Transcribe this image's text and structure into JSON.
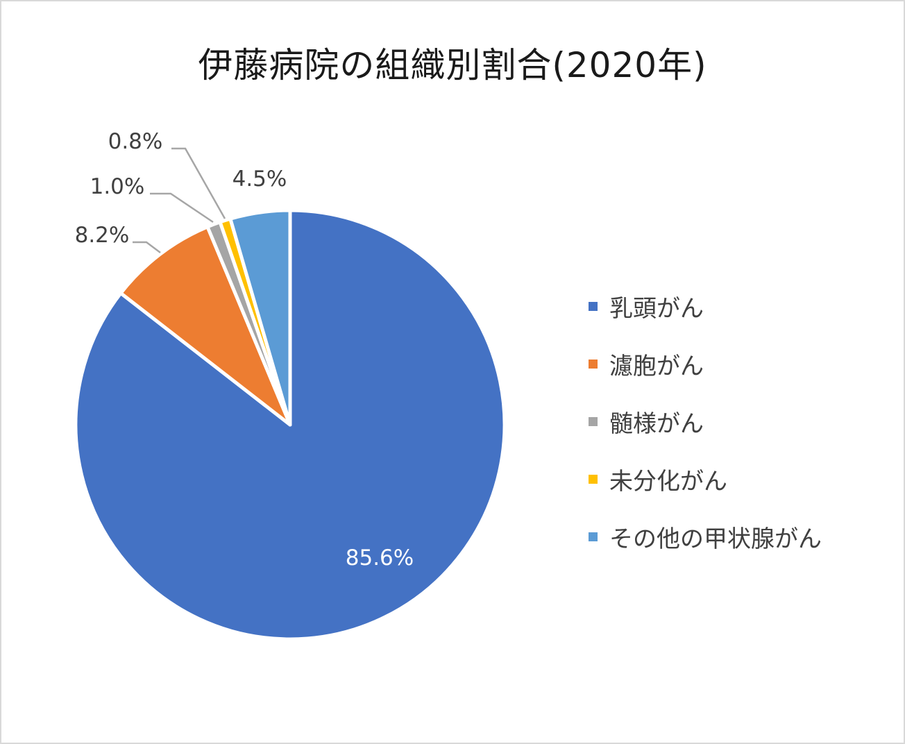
{
  "chart_data": {
    "type": "pie",
    "title": "伊藤病院の組織別割合(2020年)",
    "categories": [
      "乳頭がん",
      "濾胞がん",
      "髄様がん",
      "未分化がん",
      "その他の甲状腺がん"
    ],
    "values": [
      85.6,
      8.2,
      1.0,
      0.8,
      4.5
    ],
    "data_labels": [
      "85.6%",
      "8.2%",
      "1.0%",
      "0.8%",
      "4.5%"
    ],
    "colors": [
      "#4472C4",
      "#ED7D31",
      "#A5A5A5",
      "#FFC000",
      "#5B9BD5"
    ],
    "legend_position": "right"
  }
}
